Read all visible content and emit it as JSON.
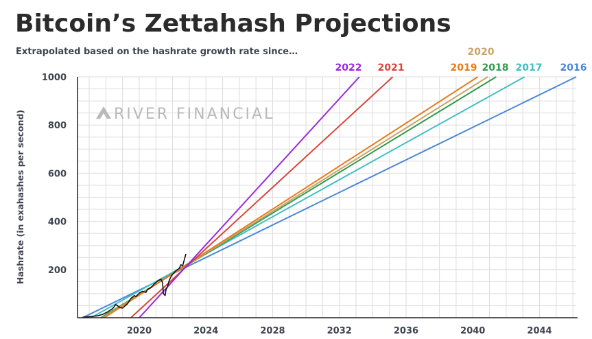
{
  "title": "Bitcoin’s Zettahash Projections",
  "subtitle": "Extrapolated based on the hashrate growth rate since…",
  "watermark": "RIVER FINANCIAL",
  "chart_data": {
    "type": "line",
    "title": "Bitcoin’s Zettahash Projections",
    "subtitle": "Extrapolated based on the hashrate growth rate since…",
    "ylabel": "Hashrate (in exahashes per second)",
    "xlabel": "",
    "xlim": [
      2016.3,
      2046.2
    ],
    "ylim": [
      0,
      1000
    ],
    "x_ticks": [
      2020,
      2024,
      2028,
      2032,
      2036,
      2040,
      2044
    ],
    "y_ticks": [
      200,
      400,
      600,
      800,
      1000
    ],
    "grid": true,
    "legend": "labels at line ends (top)",
    "series": [
      {
        "name": "2016",
        "color": "#4a86d8",
        "x": [
          2016.6,
          2046.2
        ],
        "y": [
          0,
          1000
        ]
      },
      {
        "name": "2017",
        "color": "#3fbfc4",
        "x": [
          2017.1,
          2043.1
        ],
        "y": [
          0,
          1000
        ]
      },
      {
        "name": "2018",
        "color": "#2f9a4d",
        "x": [
          2017.7,
          2041.4
        ],
        "y": [
          0,
          1000
        ]
      },
      {
        "name": "2020",
        "color": "#c9a469",
        "x": [
          2017.8,
          2040.9
        ],
        "y": [
          0,
          1000
        ]
      },
      {
        "name": "2019",
        "color": "#e97a1a",
        "x": [
          2017.9,
          2040.3
        ],
        "y": [
          0,
          1000
        ]
      },
      {
        "name": "2021",
        "color": "#d9443a",
        "x": [
          2019.5,
          2035.2
        ],
        "y": [
          0,
          1000
        ]
      },
      {
        "name": "2022",
        "color": "#9b27e0",
        "x": [
          2020.0,
          2033.2
        ],
        "y": [
          0,
          1000
        ]
      }
    ],
    "actual_hashrate": {
      "color": "#111111",
      "x": [
        2016.6,
        2017.0,
        2017.5,
        2017.8,
        2018.1,
        2018.4,
        2018.6,
        2018.85,
        2019.0,
        2019.3,
        2019.5,
        2019.7,
        2019.8,
        2020.0,
        2020.2,
        2020.4,
        2020.5,
        2020.7,
        2020.9,
        2021.1,
        2021.3,
        2021.4,
        2021.45,
        2021.55,
        2021.6,
        2021.7,
        2021.8,
        2021.9,
        2022.0,
        2022.2,
        2022.4,
        2022.5,
        2022.6,
        2022.7,
        2022.8
      ],
      "y": [
        2,
        4,
        8,
        14,
        24,
        38,
        55,
        42,
        40,
        58,
        80,
        92,
        88,
        102,
        110,
        105,
        118,
        125,
        140,
        152,
        160,
        145,
        100,
        92,
        115,
        130,
        155,
        170,
        180,
        195,
        205,
        220,
        215,
        240,
        265
      ]
    }
  }
}
